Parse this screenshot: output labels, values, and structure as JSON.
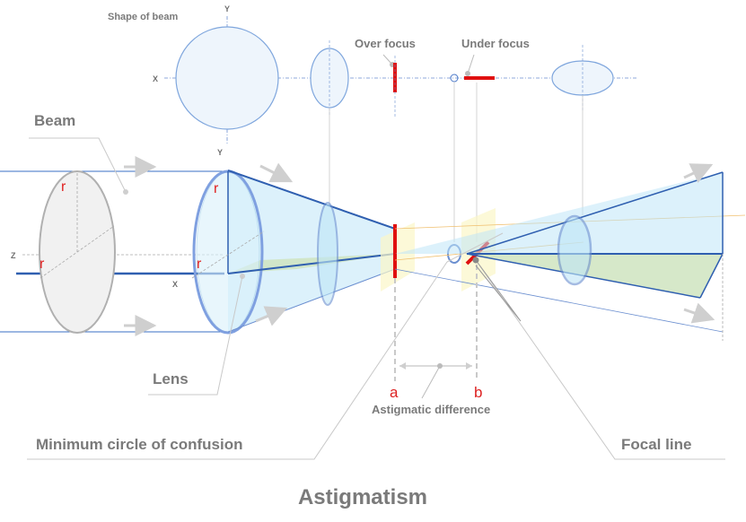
{
  "labels": {
    "shape_of_beam": "Shape of beam",
    "over_focus": "Over focus",
    "under_focus": "Under focus",
    "beam": "Beam",
    "lens": "Lens",
    "minimum_circle": "Minimum circle of confusion",
    "astigmatic_difference": "Astigmatic difference",
    "focal_line": "Focal line",
    "point_a": "a",
    "point_b": "b",
    "title": "Astigmatism"
  },
  "axes": {
    "x": "X",
    "y": "Y",
    "z": "Z"
  },
  "radius_symbol": "r",
  "colors": {
    "beam_blue": "#3a6fc4",
    "fill_blue": "#bfe6f7",
    "fill_green": "#cfe4c0",
    "focus_red": "#e01010",
    "label_gray": "#7a7a7a"
  }
}
